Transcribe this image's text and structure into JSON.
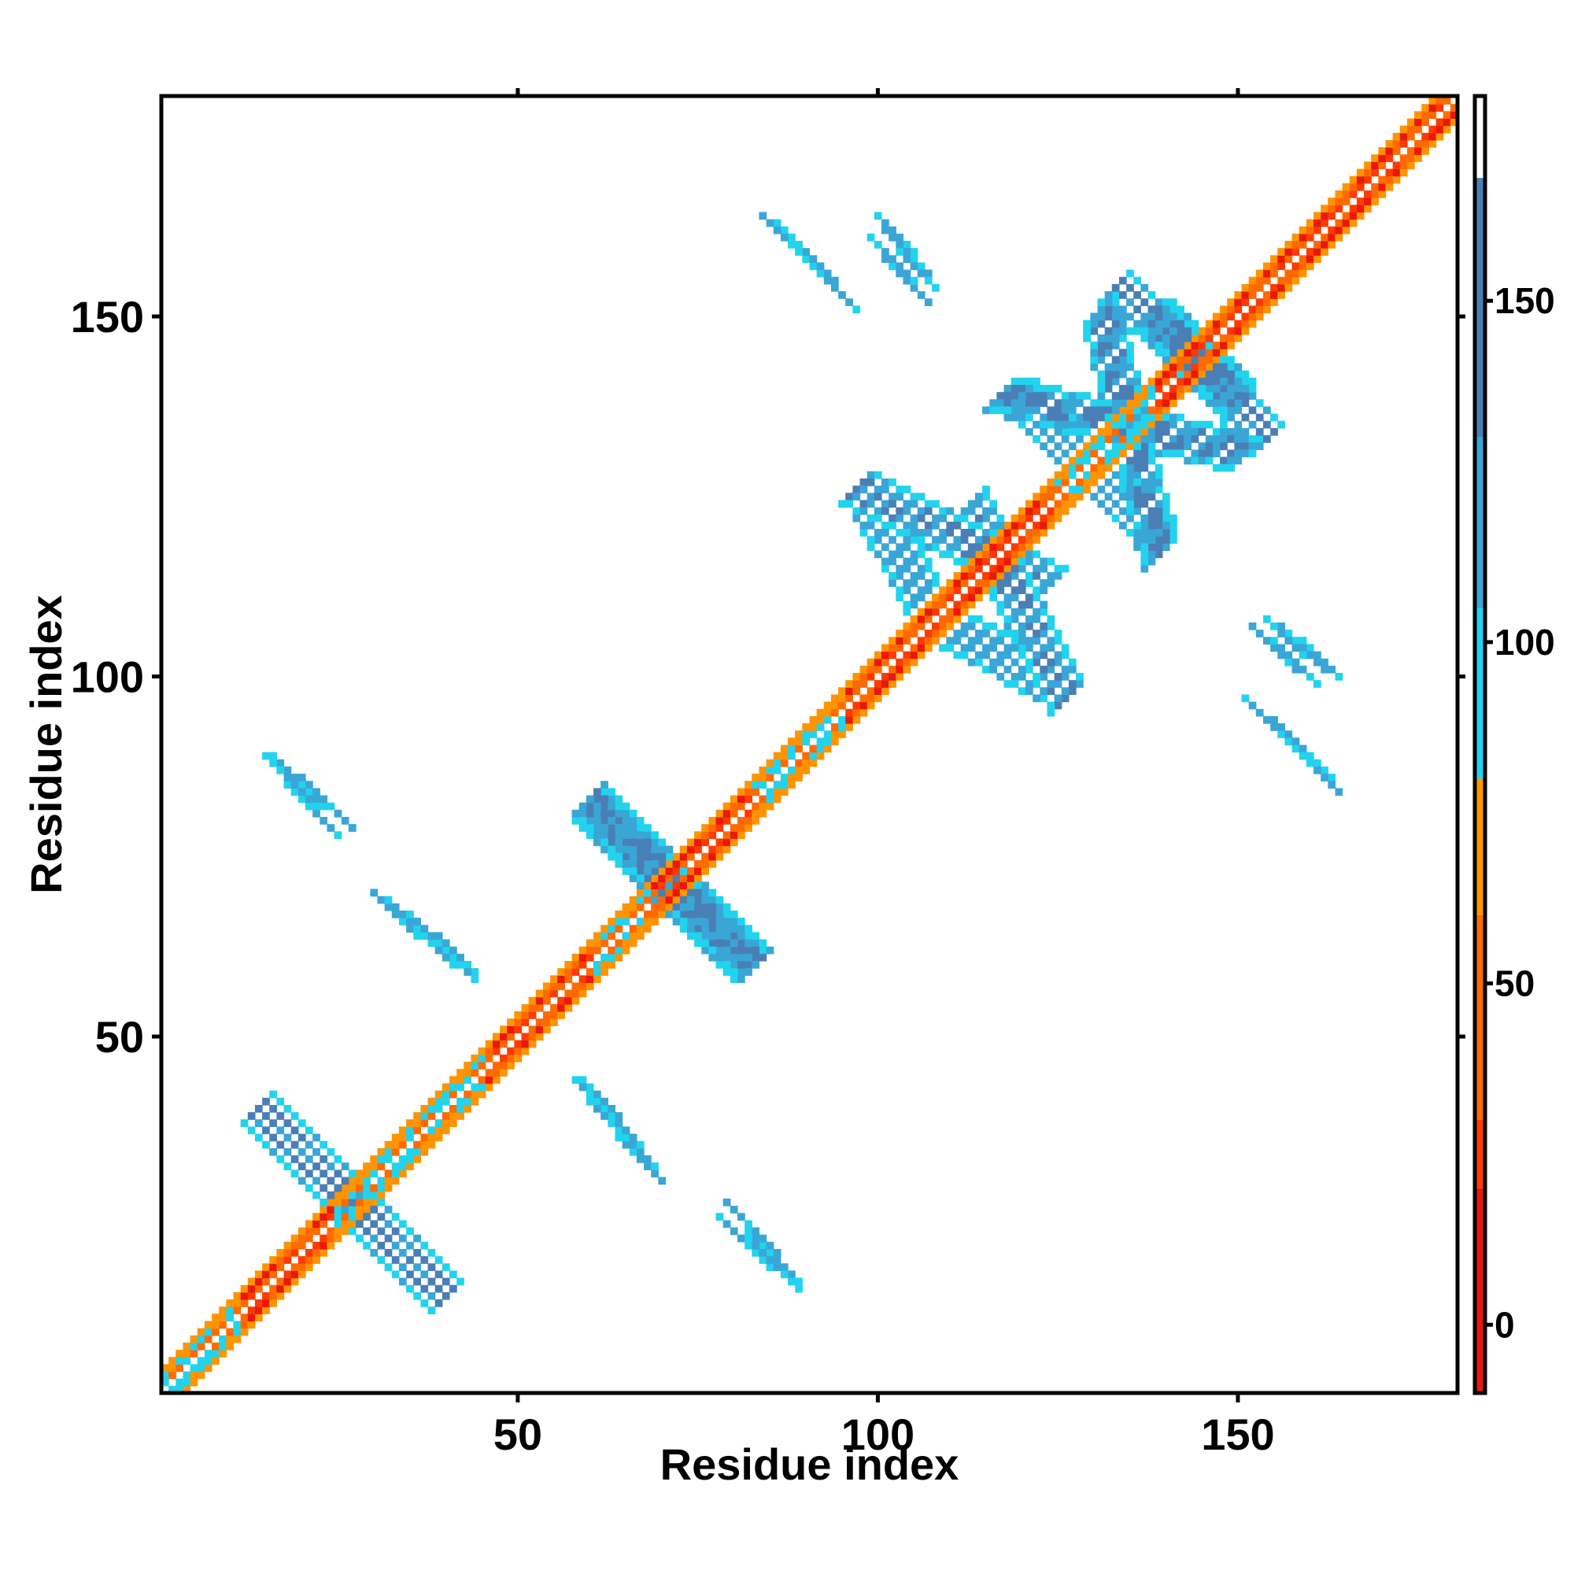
{
  "chart_data": {
    "type": "heatmap",
    "xlabel": "Residue index",
    "ylabel": "Residue index",
    "xlim": [
      1,
      180
    ],
    "ylim": [
      1,
      180
    ],
    "x_ticks": [
      50,
      100,
      150
    ],
    "y_ticks": [
      50,
      100,
      150
    ],
    "x_tick_labels": [
      "50",
      "100",
      "150"
    ],
    "y_tick_labels": [
      "50",
      "100",
      "150"
    ],
    "colorbar": {
      "range": [
        -10,
        180
      ],
      "ticks": [
        0,
        50,
        100,
        150
      ],
      "tick_labels": [
        "0",
        "50",
        "100",
        "150"
      ],
      "bands": [
        {
          "from": -10,
          "to": 20,
          "color": "#e8180c"
        },
        {
          "from": 20,
          "to": 30,
          "color": "#ff3a00"
        },
        {
          "from": 30,
          "to": 60,
          "color": "#ff6a00"
        },
        {
          "from": 60,
          "to": 80,
          "color": "#ff9400"
        },
        {
          "from": 80,
          "to": 105,
          "color": "#22d3ee"
        },
        {
          "from": 105,
          "to": 130,
          "color": "#3aa6d6"
        },
        {
          "from": 130,
          "to": 168,
          "color": "#4a7fb5"
        },
        {
          "from": 168,
          "to": 180,
          "color": "#ffffff"
        }
      ]
    },
    "diagonal": {
      "from": 1,
      "to": 180
    },
    "helix_segments": [
      [
        12,
        24
      ],
      [
        46,
        60
      ],
      [
        69,
        82
      ],
      [
        96,
        124
      ],
      [
        139,
        180
      ]
    ],
    "contact_features": [
      {
        "kind": "antiparallel",
        "x": [
          14,
          39
        ],
        "y": [
          40,
          15
        ],
        "value": 130
      },
      {
        "kind": "antiparallel",
        "x": [
          60,
          83
        ],
        "y": [
          82,
          60
        ],
        "value": 130
      },
      {
        "kind": "antiparallel",
        "x": [
          97,
          124
        ],
        "y": [
          126,
          113
        ],
        "value": 130
      },
      {
        "kind": "antiparallel",
        "x": [
          110,
          126
        ],
        "y": [
          107,
          98
        ],
        "value": 125
      },
      {
        "kind": "antiparallel",
        "x": [
          117,
          151
        ],
        "y": [
          139,
          131
        ],
        "value": 130
      },
      {
        "kind": "antiparallel",
        "x": [
          133,
          150
        ],
        "y": [
          154,
          139
        ],
        "value": 130
      },
      {
        "kind": "antiparallel",
        "x": [
          129,
          139
        ],
        "y": [
          130,
          120
        ],
        "value": 125
      },
      {
        "kind": "parallel",
        "x": [
          32,
          42
        ],
        "y": [
          68,
          61
        ],
        "value": 120
      },
      {
        "kind": "parallel",
        "x": [
          60,
          68
        ],
        "y": [
          42,
          32
        ],
        "value": 120
      },
      {
        "kind": "parallel",
        "x": [
          18,
          25
        ],
        "y": [
          87,
          81
        ],
        "value": 115
      },
      {
        "kind": "parallel",
        "x": [
          153,
          161
        ],
        "y": [
          95,
          88
        ],
        "value": 110
      },
      {
        "kind": "parallel",
        "x": [
          86,
          93
        ],
        "y": [
          162,
          155
        ],
        "value": 115
      },
      {
        "kind": "parallel",
        "x": [
          102,
          106
        ],
        "y": [
          162,
          156
        ],
        "value": 115
      },
      {
        "kind": "parallel",
        "x": [
          80,
          87
        ],
        "y": [
          23,
          17
        ],
        "value": 120
      },
      {
        "kind": "parallel",
        "x": [
          154,
          159
        ],
        "y": [
          105,
          101
        ],
        "value": 110
      }
    ]
  }
}
